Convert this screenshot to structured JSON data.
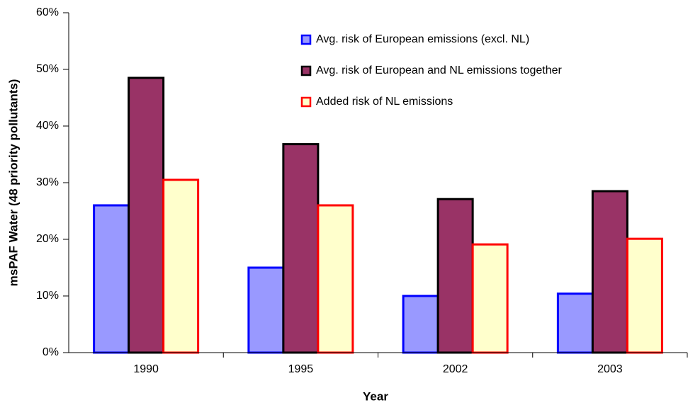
{
  "chart_data": {
    "type": "bar",
    "xlabel": "Year",
    "ylabel": "msPAF Water (48 priority pollutants)",
    "categories": [
      "1990",
      "1995",
      "2002",
      "2003"
    ],
    "series": [
      {
        "name": "Avg. risk of European emissions (excl. NL)",
        "color": "#9999ff",
        "edgecolor": "#0000ff",
        "values": [
          26,
          15,
          10,
          10.4
        ]
      },
      {
        "name": "Avg. risk of European and NL emissions together",
        "color": "#993366",
        "edgecolor": "#000000",
        "values": [
          48.5,
          36.8,
          27.1,
          28.5
        ]
      },
      {
        "name": "Added risk of NL emissions",
        "color": "#ffffcc",
        "edgecolor": "#ff0000",
        "values": [
          30.5,
          26,
          19.1,
          20.1
        ]
      }
    ],
    "ylim": [
      0,
      60
    ],
    "yticks": [
      {
        "value": 0,
        "label": "0%"
      },
      {
        "value": 10,
        "label": "10%"
      },
      {
        "value": 20,
        "label": "20%"
      },
      {
        "value": 30,
        "label": "30%"
      },
      {
        "value": 40,
        "label": "40%"
      },
      {
        "value": 50,
        "label": "50%"
      },
      {
        "value": 60,
        "label": "60%"
      }
    ],
    "grid": false,
    "legend": "upper right"
  }
}
